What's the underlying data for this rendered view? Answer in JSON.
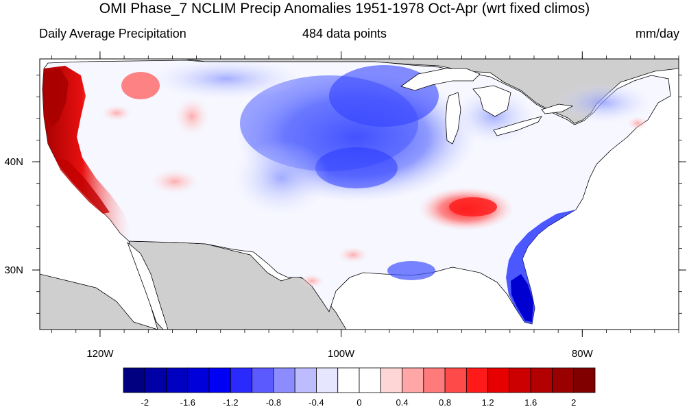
{
  "title": "OMI Phase_7 NCLIM Precip Anomalies 1951-1978 Oct-Apr (wrt fixed climos)",
  "left_string": "Daily Average Precipitation",
  "center_string": "484 data points",
  "right_string": "mm/day",
  "axes": {
    "lat_labels": [
      {
        "value": 40,
        "label": "40N"
      },
      {
        "value": 30,
        "label": "30N"
      }
    ],
    "lon_labels": [
      {
        "value": -120,
        "label": "120W"
      },
      {
        "value": -100,
        "label": "100W"
      },
      {
        "value": -80,
        "label": "80W"
      }
    ],
    "lon_range": [
      -125,
      -72
    ],
    "lat_range": [
      24.5,
      49.5
    ]
  },
  "colorbar": {
    "colors": [
      "#000080",
      "#0000a6",
      "#0000c0",
      "#0000da",
      "#0000f5",
      "#2a2aff",
      "#5a5aff",
      "#8c8cff",
      "#bcbcff",
      "#e6e6ff",
      "#ffffff",
      "#ffffff",
      "#ffd6d6",
      "#ffa6a6",
      "#ff7a7a",
      "#ff4a4a",
      "#ff1a1a",
      "#e60000",
      "#cc0000",
      "#b30000",
      "#990000",
      "#800000"
    ],
    "tick_labels": [
      "-2",
      "-1.6",
      "-1.2",
      "-0.8",
      "-0.4",
      "0",
      "0.4",
      "0.8",
      "1.2",
      "1.6",
      "2"
    ]
  },
  "colors": {
    "land_masked": "#cfcfcf",
    "positive": "#e60000",
    "negative": "#1f1fff"
  }
}
